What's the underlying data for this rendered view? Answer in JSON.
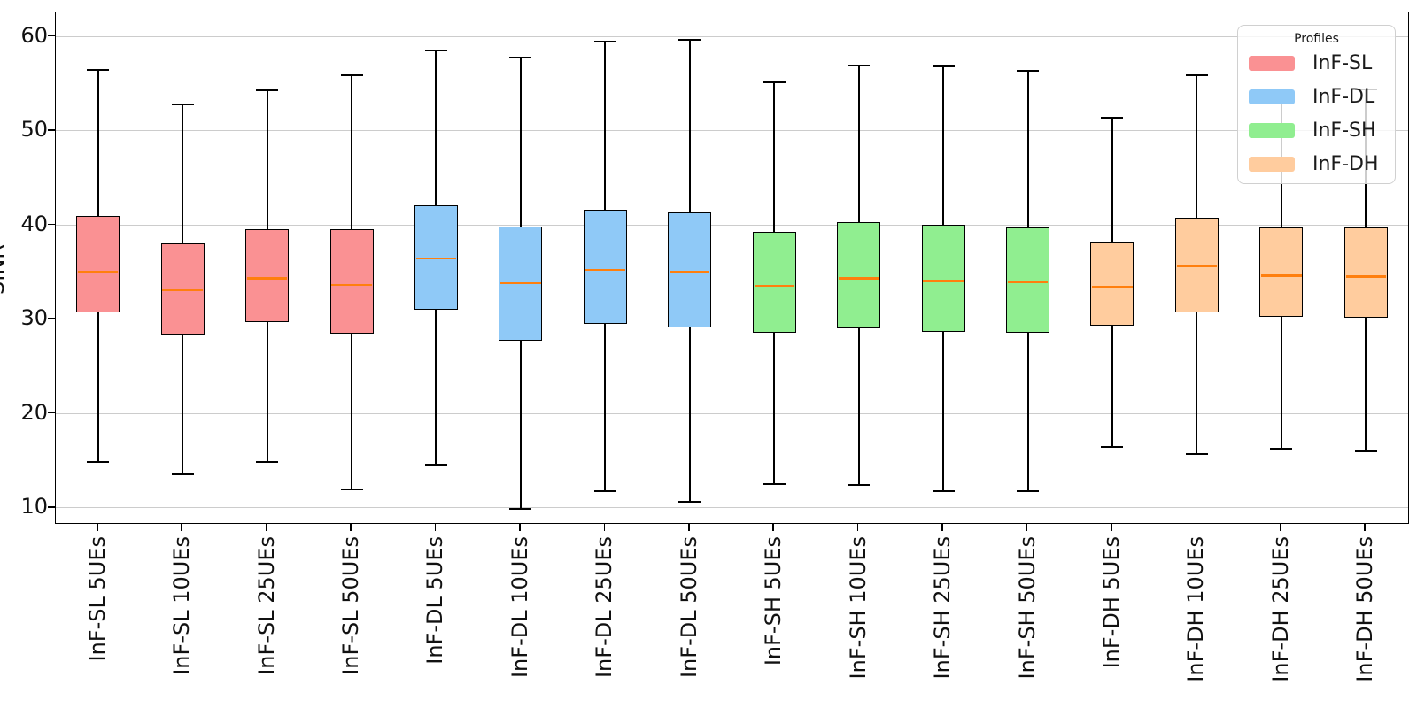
{
  "chart_data": {
    "type": "box",
    "title": "",
    "xlabel": "",
    "ylabel": "SINR",
    "ylim": [
      8.35,
      62.5
    ],
    "yticks": [
      60,
      50,
      40,
      30,
      20,
      10
    ],
    "grid": "horizontal",
    "grid_color": "#cccccc",
    "median_color": "#FF7F0E",
    "legend": {
      "title": "Profiles",
      "position": "top-right",
      "entries": [
        {
          "label": "InF-SL",
          "color": "#FA9193"
        },
        {
          "label": "InF-DL",
          "color": "#8FC9F7"
        },
        {
          "label": "InF-SH",
          "color": "#90EE90"
        },
        {
          "label": "InF-DH",
          "color": "#FFCC9E"
        }
      ]
    },
    "categories": [
      "InF-SL 5UEs",
      "InF-SL 10UEs",
      "InF-SL 25UEs",
      "InF-SL 50UEs",
      "InF-DL 5UEs",
      "InF-DL 10UEs",
      "InF-DL 25UEs",
      "InF-DL 50UEs",
      "InF-SH 5UEs",
      "InF-SH 10UEs",
      "InF-SH 25UEs",
      "InF-SH 50UEs",
      "InF-DH 5UEs",
      "InF-DH 10UEs",
      "InF-DH 25UEs",
      "InF-DH 50UEs"
    ],
    "boxes": [
      {
        "label": "InF-SL 5UEs",
        "group": "InF-SL",
        "whisker_low": 14.9,
        "q1": 30.7,
        "median": 35.0,
        "q3": 40.9,
        "whisker_high": 56.5
      },
      {
        "label": "InF-SL 10UEs",
        "group": "InF-SL",
        "whisker_low": 13.6,
        "q1": 28.3,
        "median": 33.1,
        "q3": 38.0,
        "whisker_high": 52.8
      },
      {
        "label": "InF-SL 25UEs",
        "group": "InF-SL",
        "whisker_low": 14.9,
        "q1": 29.7,
        "median": 34.3,
        "q3": 39.5,
        "whisker_high": 54.3
      },
      {
        "label": "InF-SL 50UEs",
        "group": "InF-SL",
        "whisker_low": 12.0,
        "q1": 28.4,
        "median": 33.6,
        "q3": 39.5,
        "whisker_high": 55.9
      },
      {
        "label": "InF-DL 5UEs",
        "group": "InF-DL",
        "whisker_low": 14.6,
        "q1": 31.0,
        "median": 36.4,
        "q3": 42.0,
        "whisker_high": 58.6
      },
      {
        "label": "InF-DL 10UEs",
        "group": "InF-DL",
        "whisker_low": 9.9,
        "q1": 27.7,
        "median": 33.8,
        "q3": 39.8,
        "whisker_high": 57.8
      },
      {
        "label": "InF-DL 25UEs",
        "group": "InF-DL",
        "whisker_low": 11.8,
        "q1": 29.5,
        "median": 35.2,
        "q3": 41.6,
        "whisker_high": 59.5
      },
      {
        "label": "InF-DL 50UEs",
        "group": "InF-DL",
        "whisker_low": 10.7,
        "q1": 29.1,
        "median": 35.0,
        "q3": 41.3,
        "whisker_high": 59.7
      },
      {
        "label": "InF-SH 5UEs",
        "group": "InF-SH",
        "whisker_low": 12.6,
        "q1": 28.5,
        "median": 33.5,
        "q3": 39.2,
        "whisker_high": 55.2
      },
      {
        "label": "InF-SH 10UEs",
        "group": "InF-SH",
        "whisker_low": 12.5,
        "q1": 29.0,
        "median": 34.3,
        "q3": 40.3,
        "whisker_high": 57.0
      },
      {
        "label": "InF-SH 25UEs",
        "group": "InF-SH",
        "whisker_low": 11.8,
        "q1": 28.6,
        "median": 34.0,
        "q3": 40.0,
        "whisker_high": 56.9
      },
      {
        "label": "InF-SH 50UEs",
        "group": "InF-SH",
        "whisker_low": 11.8,
        "q1": 28.5,
        "median": 33.9,
        "q3": 39.7,
        "whisker_high": 56.4
      },
      {
        "label": "InF-DH 5UEs",
        "group": "InF-DH",
        "whisker_low": 16.5,
        "q1": 29.3,
        "median": 33.4,
        "q3": 38.1,
        "whisker_high": 51.4
      },
      {
        "label": "InF-DH 10UEs",
        "group": "InF-DH",
        "whisker_low": 15.8,
        "q1": 30.7,
        "median": 35.6,
        "q3": 40.7,
        "whisker_high": 55.9
      },
      {
        "label": "InF-DH 25UEs",
        "group": "InF-DH",
        "whisker_low": 16.3,
        "q1": 30.2,
        "median": 34.6,
        "q3": 39.7,
        "whisker_high": 54.1
      },
      {
        "label": "InF-DH 50UEs",
        "group": "InF-DH",
        "whisker_low": 16.0,
        "q1": 30.1,
        "median": 34.5,
        "q3": 39.7,
        "whisker_high": 54.4
      }
    ]
  }
}
